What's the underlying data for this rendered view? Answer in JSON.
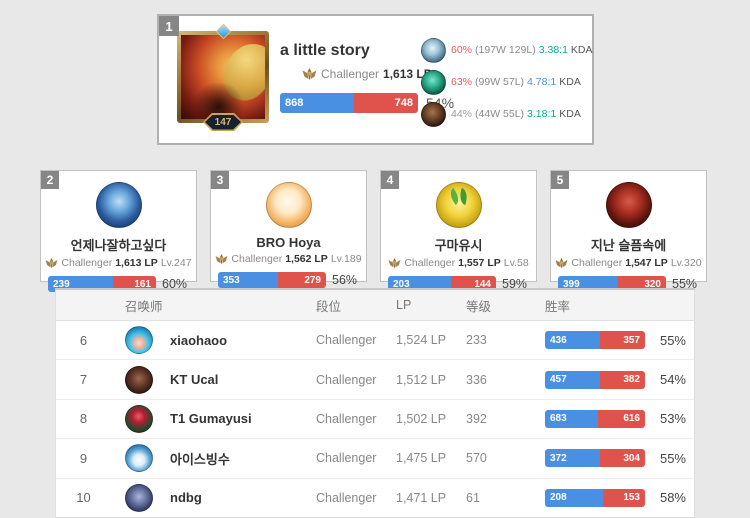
{
  "colors": {
    "win_blue": "#4a90e2",
    "loss_red": "#e0534d",
    "kda_teal": "#00ae94",
    "kda_blue": "#4a90d9",
    "pct_red": "#e0605c",
    "pct_gray": "#9e9e9e"
  },
  "top_card": {
    "rank": "1",
    "champion_level": "147",
    "name": "a little story",
    "tier": "Challenger",
    "lp": "1,613 LP",
    "wins": "868",
    "losses": "748",
    "blue_pct": 53.7,
    "winrate_label": "54%",
    "champions": [
      {
        "icon": "champion-icon-frost",
        "win_pct_label": "60%",
        "pct_color": "#e0605c",
        "record": "(197W 129L)",
        "kda": "3.38:1",
        "kda_color": "#00ae94",
        "kda_word": "KDA"
      },
      {
        "icon": "champion-icon-jade",
        "win_pct_label": "63%",
        "pct_color": "#e0605c",
        "record": "(99W 57L)",
        "kda": "4.78:1",
        "kda_color": "#4a90d9",
        "kda_word": "KDA"
      },
      {
        "icon": "champion-icon-dark",
        "win_pct_label": "44%",
        "pct_color": "#9e9e9e",
        "record": "(44W 55L)",
        "kda": "3.18:1",
        "kda_color": "#00ae94",
        "kda_word": "KDA"
      }
    ]
  },
  "cards": [
    {
      "rank": "2",
      "name": "언제나잘하고싶다",
      "tier": "Challenger",
      "lp": "1,613 LP",
      "level": "Lv.247",
      "wins": "239",
      "losses": "161",
      "blue_pct": 59.8,
      "winrate_label": "60%"
    },
    {
      "rank": "3",
      "name": "BRO Hoya",
      "tier": "Challenger",
      "lp": "1,562 LP",
      "level": "Lv.189",
      "wins": "353",
      "losses": "279",
      "blue_pct": 55.9,
      "winrate_label": "56%"
    },
    {
      "rank": "4",
      "name": "구마유시",
      "tier": "Challenger",
      "lp": "1,557 LP",
      "level": "Lv.58",
      "wins": "203",
      "losses": "144",
      "blue_pct": 58.5,
      "winrate_label": "59%"
    },
    {
      "rank": "5",
      "name": "지난 슬픔속에",
      "tier": "Challenger",
      "lp": "1,547 LP",
      "level": "Lv.320",
      "wins": "399",
      "losses": "320",
      "blue_pct": 55.5,
      "winrate_label": "55%"
    }
  ],
  "table": {
    "headers": {
      "summoner": "召唤师",
      "tier": "段位",
      "lp": "LP",
      "level": "等级",
      "winrate": "胜率"
    },
    "rows": [
      {
        "rank": "6",
        "name": "xiaohaoo",
        "tier": "Challenger",
        "lp": "1,524 LP",
        "level": "233",
        "wins": "436",
        "losses": "357",
        "blue_pct": 55.0,
        "winrate_label": "55%"
      },
      {
        "rank": "7",
        "name": "KT Ucal",
        "tier": "Challenger",
        "lp": "1,512 LP",
        "level": "336",
        "wins": "457",
        "losses": "382",
        "blue_pct": 54.5,
        "winrate_label": "54%"
      },
      {
        "rank": "8",
        "name": "T1 Gumayusi",
        "tier": "Challenger",
        "lp": "1,502 LP",
        "level": "392",
        "wins": "683",
        "losses": "616",
        "blue_pct": 52.6,
        "winrate_label": "53%"
      },
      {
        "rank": "9",
        "name": "아이스빙수",
        "tier": "Challenger",
        "lp": "1,475 LP",
        "level": "570",
        "wins": "372",
        "losses": "304",
        "blue_pct": 55.0,
        "winrate_label": "55%"
      },
      {
        "rank": "10",
        "name": "ndbg",
        "tier": "Challenger",
        "lp": "1,471 LP",
        "level": "61",
        "wins": "208",
        "losses": "153",
        "blue_pct": 57.6,
        "winrate_label": "58%"
      }
    ]
  }
}
